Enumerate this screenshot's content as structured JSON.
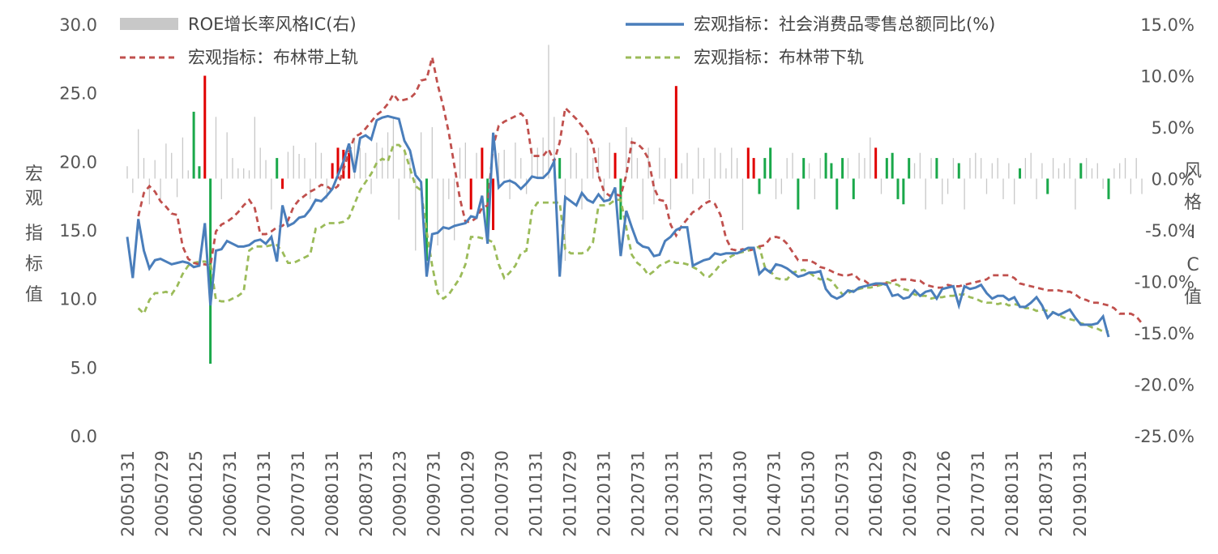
{
  "chart_data": {
    "type": "line",
    "title": "",
    "y_left": {
      "label": "宏观指标值",
      "ylim": [
        0,
        30
      ],
      "ticks": [
        "0.0",
        "5.0",
        "10.0",
        "15.0",
        "20.0",
        "25.0",
        "30.0"
      ]
    },
    "y_right": {
      "label": "风格IC值",
      "ylim": [
        -0.25,
        0.15
      ],
      "ticks": [
        "-25.0%",
        "-20.0%",
        "-15.0%",
        "-10.0%",
        "-5.0%",
        "0.0%",
        "5.0%",
        "10.0%",
        "15.0%"
      ]
    },
    "x_tick_labels": [
      "20050131",
      "20050729",
      "20060125",
      "20060731",
      "20070131",
      "20070731",
      "20080131",
      "20080731",
      "20090123",
      "20090731",
      "20100129",
      "20100730",
      "20110131",
      "20110729",
      "20120131",
      "20120731",
      "20130131",
      "20130731",
      "20140130",
      "20140731",
      "20150130",
      "20150731",
      "20160129",
      "20160729",
      "20170126",
      "20170731",
      "20180131",
      "20180731",
      "20190131"
    ],
    "legend": {
      "bars": "ROE增长率风格IC(右)",
      "macro": "宏观指标：社会消费品零售总额同比(%)",
      "upper": "宏观指标：布林带上轨",
      "lower": "宏观指标：布林带下轨"
    },
    "series": [
      {
        "name": "宏观指标：社会消费品零售总额同比(%)",
        "axis": "left",
        "color": "#4a7ebb",
        "style": "solid",
        "values": [
          14.5,
          11.5,
          15.8,
          13.5,
          12.2,
          12.8,
          12.9,
          12.7,
          12.5,
          12.6,
          12.7,
          12.6,
          12.3,
          12.4,
          15.5,
          9.5,
          13.5,
          13.6,
          14.2,
          14.0,
          13.8,
          13.8,
          13.9,
          14.2,
          14.3,
          14.0,
          14.5,
          12.7,
          16.8,
          15.3,
          15.5,
          15.9,
          16.0,
          16.5,
          17.2,
          17.1,
          17.5,
          18.0,
          19.0,
          20.0,
          21.3,
          19.2,
          21.7,
          21.9,
          21.6,
          23.0,
          23.2,
          23.3,
          23.2,
          23.1,
          21.5,
          20.8,
          19.0,
          18.5,
          11.6,
          14.7,
          14.8,
          15.2,
          15.1,
          15.3,
          15.4,
          15.5,
          16.0,
          15.9,
          17.5,
          14.0,
          22.1,
          18.1,
          18.5,
          18.6,
          18.4,
          18.0,
          18.4,
          18.9,
          18.8,
          18.8,
          19.2,
          20.0,
          11.6,
          17.4,
          17.1,
          16.8,
          17.7,
          17.2,
          17.0,
          17.6,
          17.1,
          17.2,
          18.1,
          13.1,
          16.4,
          15.2,
          14.1,
          13.8,
          13.7,
          13.1,
          13.2,
          14.2,
          14.5,
          15.0,
          15.2,
          15.2,
          12.4,
          12.6,
          12.8,
          12.9,
          13.3,
          13.2,
          13.3,
          13.3,
          13.3,
          13.5,
          13.7,
          13.7,
          11.8,
          12.2,
          11.9,
          12.5,
          12.4,
          12.2,
          11.9,
          11.6,
          11.7,
          11.9,
          11.9,
          12.0,
          10.7,
          10.2,
          10.0,
          10.2,
          10.6,
          10.5,
          10.8,
          10.9,
          11.0,
          11.1,
          11.1,
          11.0,
          10.2,
          10.3,
          10.0,
          10.1,
          10.6,
          10.2,
          10.5,
          10.6,
          10.0,
          10.7,
          10.8,
          10.9,
          9.5,
          10.9,
          10.7,
          10.8,
          11.0,
          10.4,
          10.0,
          10.2,
          10.2,
          9.9,
          10.1,
          9.4,
          9.4,
          9.7,
          10.1,
          9.5,
          8.6,
          9.0,
          8.8,
          9.0,
          9.2,
          8.6,
          8.1,
          8.1,
          8.1,
          8.2,
          8.7,
          7.2
        ]
      },
      {
        "name": "宏观指标：布林带上轨",
        "axis": "left",
        "color": "#c0504d",
        "style": "dashed",
        "values": [
          null,
          null,
          16.0,
          17.7,
          18.2,
          17.8,
          17.1,
          16.7,
          16.2,
          16.1,
          13.8,
          12.9,
          12.6,
          12.5,
          12.5,
          12.4,
          14.9,
          15.4,
          15.6,
          15.9,
          16.3,
          16.8,
          17.2,
          16.6,
          14.7,
          14.7,
          14.9,
          15.2,
          15.3,
          15.7,
          16.7,
          17.2,
          17.5,
          17.8,
          18.0,
          18.3,
          18.2,
          17.9,
          18.2,
          19.4,
          20.7,
          21.8,
          22.0,
          22.4,
          22.9,
          23.4,
          23.7,
          24.2,
          24.9,
          24.4,
          24.5,
          24.6,
          25.0,
          25.9,
          26.0,
          27.6,
          25.6,
          24.0,
          22.1,
          19.7,
          17.3,
          15.6,
          15.6,
          15.9,
          16.6,
          16.8,
          21.1,
          22.6,
          22.9,
          23.1,
          23.3,
          23.5,
          23.1,
          20.4,
          20.4,
          20.4,
          20.9,
          20.0,
          21.4,
          23.9,
          23.5,
          23.1,
          22.6,
          22.1,
          21.2,
          19.0,
          17.8,
          17.5,
          17.6,
          17.5,
          19.0,
          21.4,
          21.3,
          20.9,
          20.2,
          18.1,
          17.2,
          17.1,
          15.4,
          14.6,
          15.3,
          15.8,
          16.3,
          16.5,
          16.9,
          17.1,
          16.9,
          16.1,
          14.4,
          13.6,
          13.5,
          13.6,
          13.5,
          13.6,
          13.8,
          13.9,
          14.4,
          14.5,
          14.4,
          14.0,
          13.4,
          12.8,
          12.8,
          12.8,
          12.6,
          12.3,
          12.2,
          12.0,
          11.8,
          11.7,
          11.7,
          11.8,
          11.4,
          11.3,
          11.0,
          11.0,
          11.1,
          11.1,
          11.3,
          11.4,
          11.4,
          11.4,
          11.3,
          11.3,
          11.0,
          10.9,
          10.8,
          10.8,
          11.0,
          10.9,
          10.9,
          11.0,
          11.1,
          11.2,
          11.3,
          11.4,
          11.7,
          11.7,
          11.7,
          11.7,
          11.5,
          11.1,
          11.0,
          10.9,
          10.8,
          10.7,
          10.6,
          10.6,
          10.6,
          10.5,
          10.5,
          10.3,
          10.0,
          9.9,
          9.7,
          9.7,
          9.6,
          9.5,
          9.3,
          8.9,
          8.9,
          8.9,
          8.7,
          8.2
        ]
      },
      {
        "name": "宏观指标：布林带下轨",
        "axis": "left",
        "color": "#9bbb59",
        "style": "dashed",
        "values": [
          null,
          null,
          9.3,
          8.9,
          9.9,
          10.4,
          10.4,
          10.5,
          10.3,
          10.9,
          11.8,
          12.4,
          12.6,
          12.7,
          12.7,
          12.6,
          9.9,
          9.8,
          9.8,
          10.0,
          10.2,
          10.5,
          13.5,
          13.8,
          13.8,
          13.8,
          13.9,
          13.9,
          13.4,
          12.6,
          12.6,
          12.8,
          13.0,
          13.2,
          15.1,
          15.2,
          15.5,
          15.5,
          15.5,
          15.6,
          15.9,
          16.9,
          17.9,
          18.5,
          19.1,
          19.9,
          20.2,
          20.0,
          21.2,
          21.2,
          20.8,
          19.5,
          18.2,
          17.9,
          14.9,
          12.4,
          10.4,
          10.0,
          10.3,
          10.9,
          11.5,
          12.5,
          14.5,
          14.5,
          14.4,
          14.3,
          14.1,
          12.5,
          11.5,
          11.9,
          12.4,
          13.3,
          13.5,
          16.4,
          17.0,
          17.0,
          17.0,
          17.0,
          17.0,
          13.6,
          13.3,
          13.3,
          13.3,
          13.5,
          14.1,
          16.8,
          16.8,
          16.9,
          17.2,
          17.2,
          15.2,
          13.2,
          12.6,
          12.3,
          11.7,
          12.0,
          12.4,
          12.6,
          12.8,
          12.6,
          12.6,
          12.5,
          12.3,
          12.1,
          11.7,
          11.6,
          12.0,
          12.5,
          12.8,
          13.1,
          13.3,
          13.4,
          13.5,
          13.6,
          13.8,
          12.3,
          12.0,
          11.5,
          11.4,
          11.4,
          11.9,
          12.0,
          12.1,
          11.9,
          11.6,
          11.4,
          11.5,
          11.3,
          10.8,
          10.3,
          10.4,
          10.6,
          10.7,
          10.8,
          10.8,
          10.9,
          11.0,
          11.2,
          11.1,
          11.0,
          10.7,
          10.6,
          10.3,
          10.2,
          10.2,
          10.0,
          10.1,
          10.1,
          10.2,
          10.2,
          10.3,
          10.3,
          10.1,
          10.0,
          9.8,
          9.7,
          9.7,
          9.6,
          9.7,
          9.5,
          9.6,
          9.5,
          9.3,
          9.3,
          9.1,
          9.2,
          9.1,
          9.0,
          8.8,
          8.6,
          8.5,
          8.4,
          8.2,
          8.1,
          7.9,
          7.8,
          7.6,
          7.6
        ]
      },
      {
        "name": "ROE增长率风格IC(右)",
        "axis": "right",
        "type": "bar",
        "normal_color": "#c8c8c8",
        "break_up_color": "#e00000",
        "break_down_color": "#1aa84a",
        "values": [
          0.012,
          -0.014,
          0.048,
          0.02,
          -0.025,
          0.018,
          -0.02,
          0.034,
          0.025,
          -0.018,
          0.04,
          0.008,
          0.065,
          0.012,
          0.1,
          -0.18,
          0.06,
          -0.02,
          0.045,
          0.02,
          0.01,
          0.01,
          0.008,
          0.06,
          0.03,
          0.018,
          -0.03,
          0.02,
          -0.01,
          0.026,
          0.032,
          0.024,
          0.02,
          -0.02,
          0.035,
          0.025,
          -0.02,
          0.015,
          0.03,
          0.028,
          0.025,
          0.04,
          0.03,
          0.025,
          -0.015,
          0.035,
          0.03,
          0.045,
          0.06,
          -0.04,
          0.028,
          0.02,
          -0.07,
          0.045,
          -0.08,
          0.05,
          -0.065,
          -0.11,
          -0.02,
          -0.06,
          0.03,
          0.035,
          -0.03,
          0.025,
          0.03,
          -0.06,
          -0.05,
          0.025,
          0.028,
          -0.02,
          0.035,
          0.02,
          -0.015,
          0.03,
          0.03,
          0.04,
          0.13,
          0.06,
          0.02,
          -0.08,
          0.03,
          0.025,
          -0.03,
          0.04,
          0.02,
          0.03,
          -0.02,
          0.035,
          0.025,
          -0.04,
          0.05,
          0.04,
          0.02,
          -0.04,
          0.03,
          -0.025,
          0.03,
          0.02,
          -0.03,
          0.09,
          0.015,
          0.025,
          -0.015,
          0.03,
          0.02,
          -0.02,
          0.03,
          0.025,
          0.01,
          0.03,
          0.02,
          -0.05,
          0.03,
          0.02,
          -0.015,
          0.02,
          0.03,
          -0.02,
          -0.015,
          0.02,
          0.025,
          -0.03,
          0.02,
          0.015,
          -0.02,
          0.02,
          0.025,
          0.015,
          -0.03,
          0.02,
          0.02,
          -0.02,
          0.025,
          0.02,
          0.04,
          0.03,
          -0.015,
          0.02,
          0.025,
          -0.02,
          -0.025,
          0.02,
          0.015,
          0.025,
          -0.03,
          0.02,
          0.02,
          -0.025,
          -0.015,
          0.02,
          0.015,
          -0.03,
          0.02,
          0.025,
          0.02,
          -0.015,
          0.015,
          0.02,
          -0.02,
          0.015,
          -0.025,
          0.01,
          0.02,
          0.025,
          -0.02,
          0.015,
          -0.015,
          0.02,
          0.01,
          0.015,
          0.02,
          -0.03,
          0.015,
          0.02,
          0.01,
          0.015,
          -0.01,
          -0.02,
          0.01,
          0.015,
          0.02,
          -0.015,
          0.02,
          -0.015
        ]
      }
    ]
  }
}
